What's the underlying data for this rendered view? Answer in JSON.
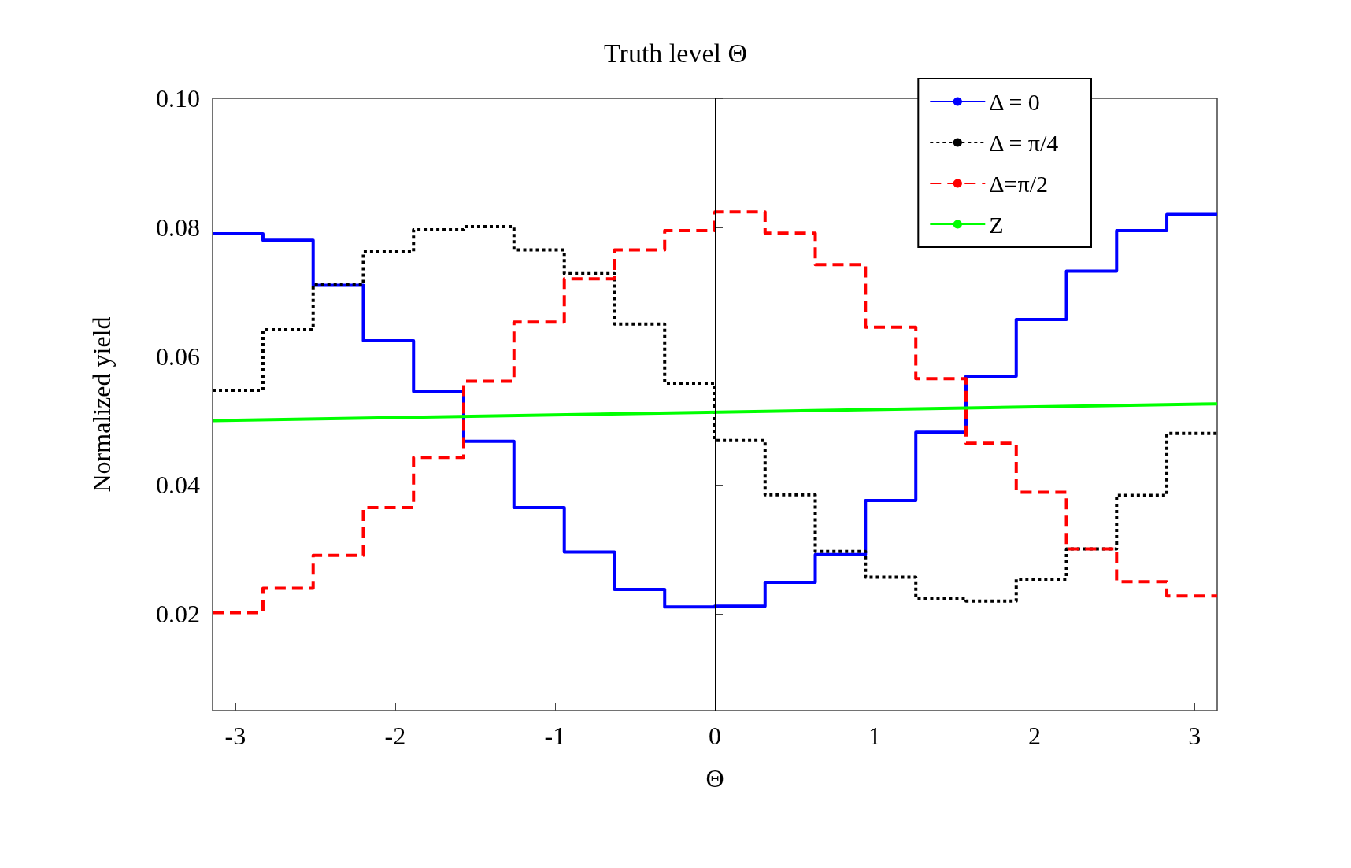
{
  "chart_data": {
    "type": "step",
    "title": "Truth level Θ",
    "xlabel": "Θ",
    "ylabel": "Normalized yield",
    "x": [
      -3.142,
      -2.827,
      -2.513,
      -2.199,
      -1.885,
      -1.571,
      -1.257,
      -0.942,
      -0.628,
      -0.314,
      0,
      0.314,
      0.628,
      0.942,
      1.257,
      1.571,
      1.885,
      2.199,
      2.513,
      2.827,
      3.142
    ],
    "series": [
      {
        "name": "Δ = 0",
        "color": "#0000ff",
        "line_style": "solid",
        "values": [
          0.079,
          0.078,
          0.071,
          0.0624,
          0.0545,
          0.0468,
          0.0365,
          0.0296,
          0.0238,
          0.0211,
          0.0212,
          0.0249,
          0.0292,
          0.0376,
          0.0482,
          0.0569,
          0.0657,
          0.0732,
          0.0795,
          0.082,
          0.082
        ]
      },
      {
        "name": "Δ = π/4",
        "color": "#000000",
        "line_style": "dotted",
        "values": [
          0.0547,
          0.0641,
          0.0711,
          0.0762,
          0.0796,
          0.0801,
          0.0765,
          0.0728,
          0.065,
          0.0558,
          0.0469,
          0.0385,
          0.0297,
          0.0257,
          0.0224,
          0.022,
          0.0254,
          0.0301,
          0.0384,
          0.048,
          0.048
        ]
      },
      {
        "name": "Δ=π/2",
        "color": "#ff0000",
        "line_style": "dashed",
        "values": [
          0.0202,
          0.024,
          0.0291,
          0.0365,
          0.0443,
          0.0561,
          0.0653,
          0.072,
          0.0765,
          0.0795,
          0.0824,
          0.0791,
          0.0742,
          0.0645,
          0.0565,
          0.0465,
          0.0389,
          0.0301,
          0.025,
          0.0228,
          0.0228
        ]
      },
      {
        "name": "Z",
        "color": "#00ff00",
        "line_style": "solid",
        "type": "line",
        "x": [
          -3.142,
          3.142
        ],
        "values": [
          0.05,
          0.0526
        ]
      }
    ],
    "xlim": [
      -3.142,
      3.142
    ],
    "xticks": [
      -3,
      -2,
      -1,
      0,
      1,
      2,
      3
    ],
    "ylim": [
      0.005,
      0.1
    ],
    "yticks": [
      0.02,
      0.04,
      0.06,
      0.08,
      {
        "value": 0.1,
        "label": "0.10"
      }
    ],
    "ref_lines": [
      {
        "axis": "x",
        "value": 0,
        "color": "#000000"
      }
    ],
    "legend": "top right",
    "grid": false,
    "marker": "none"
  }
}
